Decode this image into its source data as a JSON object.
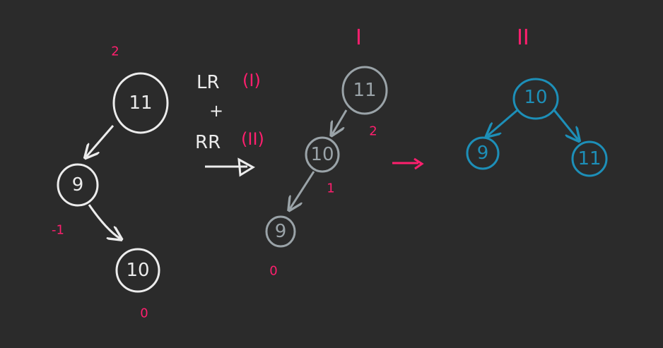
{
  "colors": {
    "background": "#2b2b2b",
    "stroke_white": "#ececec",
    "stroke_grey": "#9aa3a8",
    "stroke_blue": "#1d8fb8",
    "annotation_pink": "#ff1f6e"
  },
  "tree_original": {
    "balance_root": "2",
    "balance_mid": "-1",
    "balance_leaf": "0",
    "node_root": "11",
    "node_mid": "9",
    "node_leaf": "10"
  },
  "operation": {
    "line1_prefix": "LR",
    "line1_tag": "(I)",
    "plus": "+",
    "line2_prefix": "RR",
    "line2_tag": "(II)"
  },
  "tree_step1": {
    "heading": "I",
    "node_root": "11",
    "node_mid": "10",
    "node_leaf": "9",
    "balance_root": "2",
    "balance_mid": "1",
    "balance_leaf": "0"
  },
  "tree_step2": {
    "heading": "II",
    "node_root": "10",
    "node_left": "9",
    "node_right": "11"
  }
}
